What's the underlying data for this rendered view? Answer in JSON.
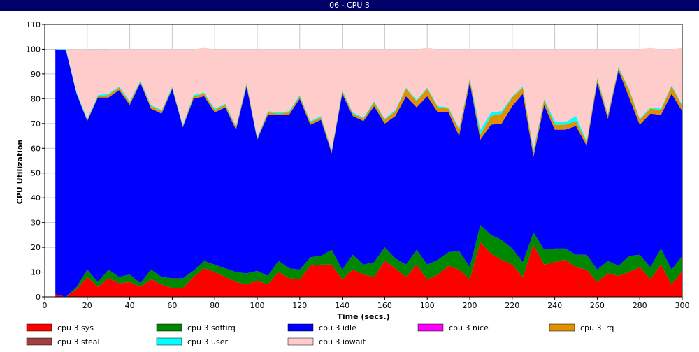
{
  "window": {
    "title": "06 - CPU 3"
  },
  "chart_data": {
    "type": "area",
    "stacked": true,
    "title": "06 - CPU 3",
    "xlabel": "Time (secs.)",
    "ylabel": "CPU Utilization",
    "xlim": [
      0,
      300
    ],
    "ylim": [
      0,
      110
    ],
    "xticks": [
      0,
      20,
      40,
      60,
      80,
      100,
      120,
      140,
      160,
      180,
      200,
      220,
      240,
      260,
      280,
      300
    ],
    "yticks": [
      0,
      10,
      20,
      30,
      40,
      50,
      60,
      70,
      80,
      90,
      100,
      110
    ],
    "grid": true,
    "legend_position": "bottom",
    "x": [
      5,
      10,
      15,
      20,
      25,
      30,
      35,
      40,
      45,
      50,
      55,
      60,
      65,
      70,
      75,
      80,
      85,
      90,
      95,
      100,
      105,
      110,
      115,
      120,
      125,
      130,
      135,
      140,
      145,
      150,
      155,
      160,
      165,
      170,
      175,
      180,
      185,
      190,
      195,
      200,
      205,
      210,
      215,
      220,
      225,
      230,
      235,
      240,
      245,
      250,
      255,
      260,
      265,
      270,
      275,
      280,
      285,
      290,
      295,
      300
    ],
    "series": [
      {
        "name": "cpu 3 sys",
        "color": "#ff0000",
        "values": [
          1,
          0,
          3,
          8,
          4,
          7.5,
          5.5,
          6,
          4,
          7,
          5,
          3.5,
          3.5,
          8,
          11.5,
          10,
          8,
          6,
          5,
          6.5,
          5,
          10,
          7.5,
          7,
          12.5,
          13,
          13,
          7,
          11,
          9,
          8,
          14.5,
          11.5,
          8,
          13,
          7,
          9,
          12.5,
          11,
          7,
          22,
          17.5,
          15,
          13,
          8,
          21,
          13,
          14,
          15,
          12,
          11,
          6,
          9.5,
          8.5,
          10,
          12,
          7,
          13,
          5,
          10.5
        ]
      },
      {
        "name": "cpu 3 softirq",
        "color": "#008800",
        "values": [
          0,
          0,
          1,
          3,
          2,
          3.5,
          2.5,
          3,
          1.5,
          4,
          3,
          4,
          4,
          2.5,
          3,
          3,
          3.5,
          4,
          4.5,
          4,
          3.5,
          4.5,
          4,
          4,
          3.5,
          3.5,
          6,
          4,
          6,
          4,
          6,
          5.5,
          4,
          5,
          6,
          6,
          6,
          5.5,
          7.5,
          5,
          7,
          7.5,
          8,
          6.5,
          6,
          5,
          6,
          5.5,
          4.5,
          5,
          6,
          5,
          5,
          4,
          6.5,
          5,
          5,
          6.5,
          6,
          6
        ]
      },
      {
        "name": "cpu 3 idle",
        "color": "#0000ff",
        "values": [
          99,
          99.5,
          78,
          60,
          74.5,
          69.5,
          75.5,
          68.5,
          81,
          65,
          66,
          76.5,
          61,
          69.5,
          66.5,
          61.5,
          65,
          57.5,
          75.5,
          53,
          65,
          59,
          62,
          69,
          53.5,
          55,
          39,
          71,
          56,
          58,
          63,
          50,
          57.5,
          68,
          57.5,
          68,
          59.5,
          56.5,
          46.5,
          74.5,
          34.5,
          44.5,
          47,
          57.5,
          68,
          30.5,
          58.5,
          48,
          48,
          52,
          44,
          75.5,
          57.5,
          79,
          64,
          52.5,
          62,
          54,
          71,
          58.5
        ]
      },
      {
        "name": "cpu 3 nice",
        "color": "#ff00ff",
        "values": [
          0,
          0,
          0,
          0,
          0,
          0,
          0,
          0,
          0,
          0,
          0,
          0,
          0,
          0,
          0,
          0,
          0,
          0,
          0,
          0,
          0,
          0,
          0,
          0,
          0,
          0,
          0,
          0,
          0,
          0,
          0,
          0,
          0,
          0,
          0,
          0,
          0,
          0,
          0,
          0,
          0,
          0,
          0,
          0,
          0,
          0,
          0,
          0,
          0,
          0,
          0,
          0,
          0,
          0,
          0,
          0,
          0,
          0,
          0,
          0
        ]
      },
      {
        "name": "cpu 3 irq",
        "color": "#e09000",
        "values": [
          0,
          0,
          0,
          0.5,
          0.5,
          1,
          1,
          1,
          0.5,
          1,
          1,
          0.5,
          0.5,
          1,
          1,
          1,
          1,
          1,
          1,
          0.5,
          1,
          0.5,
          1,
          1,
          1,
          1,
          1,
          1,
          1,
          1,
          1.5,
          1.5,
          2,
          3,
          2.5,
          3,
          2,
          1.5,
          2.5,
          1.5,
          2,
          3.5,
          4,
          3.5,
          2.5,
          2,
          2,
          2,
          2,
          2,
          1.5,
          1.5,
          1.5,
          1,
          3,
          2,
          2,
          2,
          3,
          2
        ]
      },
      {
        "name": "cpu 3 steal",
        "color": "#a04040",
        "values": [
          0,
          0,
          0,
          0,
          0,
          0,
          0,
          0,
          0,
          0,
          0,
          0,
          0,
          0,
          0,
          0,
          0,
          0,
          0,
          0,
          0,
          0,
          0,
          0,
          0,
          0,
          0,
          0,
          0,
          0,
          0,
          0,
          0,
          0,
          0,
          0,
          0,
          0,
          0,
          0,
          0,
          0,
          0,
          0,
          0,
          0,
          0,
          0,
          0,
          0,
          0,
          0,
          0,
          0,
          0,
          0,
          0,
          0,
          0,
          0
        ]
      },
      {
        "name": "cpu 3 user",
        "color": "#00ffff",
        "values": [
          0,
          0.5,
          0.5,
          0.5,
          0.5,
          0.5,
          0.5,
          0.5,
          0.5,
          0.5,
          0.5,
          0.5,
          0.5,
          0.5,
          0.5,
          0.5,
          0.5,
          0.5,
          0.5,
          0.5,
          0.5,
          0.5,
          0.5,
          0.5,
          0.5,
          0.5,
          0.5,
          0.5,
          0.5,
          0.5,
          0.5,
          0.5,
          0.5,
          0.5,
          0.5,
          0.5,
          0.5,
          0.5,
          0.5,
          0.5,
          2,
          1.5,
          1,
          0.5,
          0.5,
          1,
          0.5,
          1.5,
          1,
          2,
          0.5,
          0.5,
          0.5,
          0.5,
          0.5,
          0.5,
          0.5,
          0.5,
          0.5,
          0.5
        ]
      },
      {
        "name": "cpu 3 iowait",
        "color": "#ffcccc",
        "values": [
          0,
          0,
          17.5,
          28,
          18,
          18,
          15,
          21,
          12.5,
          22.5,
          24.5,
          15,
          30.5,
          18.5,
          18,
          24,
          22,
          31,
          13.5,
          35.5,
          25,
          25.5,
          25,
          18.5,
          29,
          27,
          40.5,
          16.5,
          25.5,
          27.5,
          21,
          28,
          24.5,
          15.5,
          20.5,
          16,
          23,
          23.5,
          32,
          11.5,
          32.5,
          25.5,
          25,
          19,
          15,
          40.5,
          20,
          29,
          29.5,
          27,
          37,
          11.5,
          26,
          7,
          16,
          28,
          24,
          24,
          14.5,
          23
        ]
      }
    ]
  }
}
